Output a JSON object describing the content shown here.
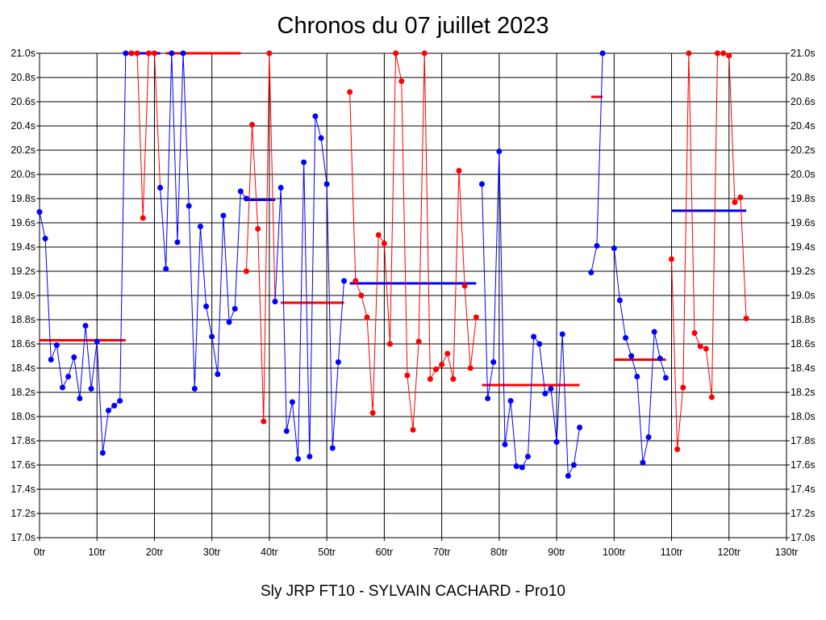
{
  "chart_data": {
    "type": "line",
    "title": "Chronos du 07 juillet 2023",
    "subtitle": "Sly JRP FT10 - SYLVAIN CACHARD - Pro10",
    "xlim": [
      0,
      130
    ],
    "ylim": [
      17.0,
      21.0
    ],
    "x_ticks": [
      0,
      10,
      20,
      30,
      40,
      50,
      60,
      70,
      80,
      90,
      100,
      110,
      120,
      130
    ],
    "x_tick_suffix": "tr",
    "y_ticks": [
      17.0,
      17.2,
      17.4,
      17.6,
      17.8,
      18.0,
      18.2,
      18.4,
      18.6,
      18.8,
      19.0,
      19.2,
      19.4,
      19.6,
      19.8,
      20.0,
      20.2,
      20.4,
      20.6,
      20.8,
      21.0
    ],
    "y_tick_suffix": "s",
    "grid": true,
    "colors": {
      "blue": "#0000ff",
      "red": "#ff0000",
      "grid": "#000000"
    },
    "series": [
      {
        "color": "blue",
        "points": [
          [
            0,
            19.69
          ],
          [
            1,
            19.47
          ],
          [
            2,
            18.47
          ],
          [
            3,
            18.59
          ],
          [
            4,
            18.24
          ],
          [
            5,
            18.33
          ],
          [
            6,
            18.49
          ],
          [
            7,
            18.15
          ],
          [
            8,
            18.75
          ],
          [
            9,
            18.23
          ],
          [
            10,
            18.62
          ],
          [
            11,
            17.7
          ],
          [
            12,
            18.05
          ],
          [
            13,
            18.09
          ],
          [
            14,
            18.13
          ],
          [
            15,
            21.0
          ],
          [
            16,
            21.0
          ]
        ]
      },
      {
        "color": "red",
        "points": [
          [
            16,
            21.0
          ],
          [
            17,
            21.0
          ],
          [
            18,
            19.64
          ],
          [
            19,
            21.0
          ],
          [
            20,
            21.0
          ],
          [
            21,
            19.89
          ]
        ]
      },
      {
        "color": "blue",
        "points": [
          [
            21,
            19.89
          ],
          [
            22,
            19.22
          ],
          [
            23,
            21.0
          ],
          [
            24,
            19.44
          ],
          [
            25,
            21.0
          ],
          [
            26,
            19.74
          ],
          [
            27,
            18.23
          ],
          [
            28,
            19.57
          ],
          [
            29,
            18.91
          ],
          [
            30,
            18.66
          ],
          [
            31,
            18.35
          ],
          [
            32,
            19.66
          ],
          [
            33,
            18.78
          ],
          [
            34,
            18.89
          ],
          [
            35,
            19.86
          ],
          [
            36,
            19.8
          ]
        ]
      },
      {
        "color": "red",
        "points": [
          [
            36,
            19.2
          ],
          [
            37,
            20.41
          ],
          [
            38,
            19.55
          ],
          [
            39,
            17.96
          ],
          [
            40,
            21.0
          ],
          [
            41,
            18.95
          ]
        ]
      },
      {
        "color": "blue",
        "points": [
          [
            41,
            18.95
          ],
          [
            42,
            19.89
          ],
          [
            43,
            17.88
          ],
          [
            44,
            18.12
          ],
          [
            45,
            17.65
          ],
          [
            46,
            20.1
          ],
          [
            47,
            17.67
          ],
          [
            48,
            20.48
          ],
          [
            49,
            20.3
          ],
          [
            50,
            19.92
          ],
          [
            51,
            17.74
          ],
          [
            52,
            18.45
          ],
          [
            53,
            19.12
          ]
        ]
      },
      {
        "color": "red",
        "points": [
          [
            54,
            20.68
          ],
          [
            55,
            19.12
          ],
          [
            56,
            19.0
          ],
          [
            57,
            18.82
          ],
          [
            58,
            18.03
          ],
          [
            59,
            19.5
          ],
          [
            60,
            19.43
          ],
          [
            61,
            18.6
          ],
          [
            62,
            21.0
          ],
          [
            63,
            20.77
          ],
          [
            64,
            18.34
          ],
          [
            65,
            17.89
          ],
          [
            66,
            18.62
          ],
          [
            67,
            21.0
          ],
          [
            68,
            18.31
          ],
          [
            69,
            18.39
          ],
          [
            70,
            18.43
          ],
          [
            71,
            18.52
          ],
          [
            72,
            18.31
          ],
          [
            73,
            20.03
          ],
          [
            74,
            19.08
          ],
          [
            75,
            18.4
          ],
          [
            76,
            18.82
          ]
        ]
      },
      {
        "color": "blue",
        "points": [
          [
            77,
            19.92
          ],
          [
            78,
            18.15
          ],
          [
            79,
            18.45
          ],
          [
            80,
            20.19
          ],
          [
            81,
            17.77
          ],
          [
            82,
            18.13
          ],
          [
            83,
            17.59
          ],
          [
            84,
            17.58
          ],
          [
            85,
            17.67
          ],
          [
            86,
            18.66
          ],
          [
            87,
            18.6
          ],
          [
            88,
            18.19
          ],
          [
            89,
            18.23
          ],
          [
            90,
            17.79
          ],
          [
            91,
            18.68
          ],
          [
            92,
            17.51
          ],
          [
            93,
            17.6
          ],
          [
            94,
            17.91
          ]
        ]
      },
      {
        "color": "blue",
        "points": [
          [
            96,
            19.19
          ],
          [
            97,
            19.41
          ],
          [
            98,
            21.0
          ]
        ]
      },
      {
        "color": "blue",
        "points": [
          [
            100,
            19.39
          ],
          [
            101,
            18.96
          ],
          [
            102,
            18.65
          ],
          [
            103,
            18.5
          ],
          [
            104,
            18.33
          ],
          [
            105,
            17.62
          ],
          [
            106,
            17.83
          ],
          [
            107,
            18.7
          ],
          [
            108,
            18.48
          ],
          [
            109,
            18.32
          ]
        ]
      },
      {
        "color": "red",
        "points": [
          [
            110,
            19.3
          ],
          [
            111,
            17.73
          ],
          [
            112,
            18.24
          ],
          [
            113,
            21.0
          ],
          [
            114,
            18.69
          ],
          [
            115,
            18.58
          ],
          [
            116,
            18.56
          ],
          [
            117,
            18.16
          ],
          [
            118,
            21.0
          ],
          [
            119,
            21.0
          ],
          [
            120,
            20.98
          ],
          [
            121,
            19.77
          ],
          [
            122,
            19.81
          ],
          [
            123,
            18.81
          ]
        ]
      }
    ],
    "averages": [
      {
        "color": "red",
        "x": [
          0,
          15
        ],
        "y": 18.63
      },
      {
        "color": "blue",
        "x": [
          15,
          21
        ],
        "y": 21.0
      },
      {
        "color": "red",
        "x": [
          22,
          35
        ],
        "y": 21.0
      },
      {
        "color": "blue",
        "x": [
          36,
          41
        ],
        "y": 19.79
      },
      {
        "color": "red",
        "x": [
          42,
          53
        ],
        "y": 18.94
      },
      {
        "color": "blue",
        "x": [
          54,
          76
        ],
        "y": 19.1
      },
      {
        "color": "red",
        "x": [
          77,
          94
        ],
        "y": 18.26
      },
      {
        "color": "red",
        "x": [
          96,
          98
        ],
        "y": 20.64
      },
      {
        "color": "red",
        "x": [
          100,
          109
        ],
        "y": 18.47
      },
      {
        "color": "blue",
        "x": [
          110,
          123
        ],
        "y": 19.7
      }
    ]
  }
}
